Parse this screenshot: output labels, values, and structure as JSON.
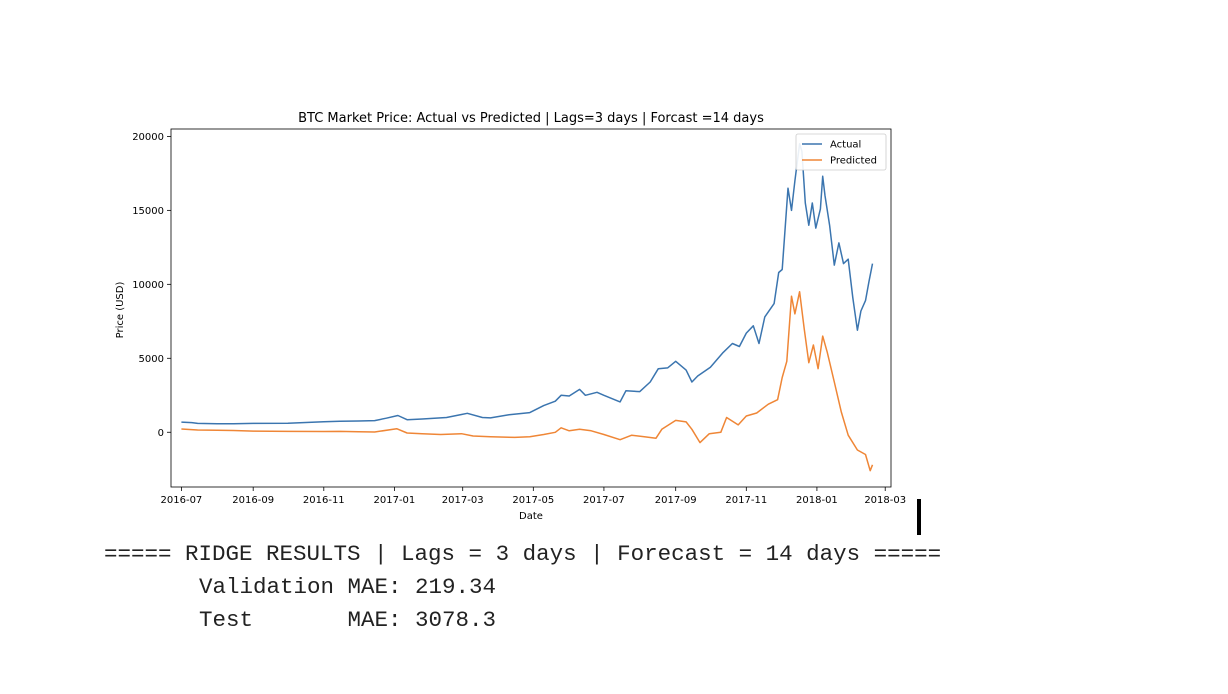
{
  "chart_data": {
    "type": "line",
    "title": "BTC Market Price: Actual vs Predicted | Lags=3 days | Forcast =14 days",
    "xlabel": "Date",
    "ylabel": "Price (USD)",
    "xlim": [
      "2016-06-22",
      "2018-03-06"
    ],
    "ylim": [
      -3700,
      20500
    ],
    "x_ticks": [
      "2016-07",
      "2016-09",
      "2016-11",
      "2017-01",
      "2017-03",
      "2017-05",
      "2017-07",
      "2017-09",
      "2017-11",
      "2018-01",
      "2018-03"
    ],
    "y_ticks": [
      0,
      5000,
      10000,
      15000,
      20000
    ],
    "grid": false,
    "legend_position": "top-right",
    "series": [
      {
        "name": "Actual",
        "color": "#3b75af",
        "points": [
          [
            "2016-07-01",
            690
          ],
          [
            "2016-07-10",
            650
          ],
          [
            "2016-07-15",
            600
          ],
          [
            "2016-08-01",
            580
          ],
          [
            "2016-08-15",
            580
          ],
          [
            "2016-09-01",
            600
          ],
          [
            "2016-10-01",
            615
          ],
          [
            "2016-11-01",
            710
          ],
          [
            "2016-11-15",
            740
          ],
          [
            "2016-12-01",
            760
          ],
          [
            "2016-12-15",
            790
          ],
          [
            "2016-12-25",
            950
          ],
          [
            "2017-01-04",
            1130
          ],
          [
            "2017-01-12",
            850
          ],
          [
            "2017-01-25",
            900
          ],
          [
            "2017-02-15",
            1000
          ],
          [
            "2017-02-28",
            1200
          ],
          [
            "2017-03-05",
            1280
          ],
          [
            "2017-03-18",
            1000
          ],
          [
            "2017-03-25",
            970
          ],
          [
            "2017-04-10",
            1180
          ],
          [
            "2017-04-28",
            1330
          ],
          [
            "2017-05-10",
            1800
          ],
          [
            "2017-05-20",
            2100
          ],
          [
            "2017-05-25",
            2500
          ],
          [
            "2017-06-01",
            2450
          ],
          [
            "2017-06-10",
            2900
          ],
          [
            "2017-06-15",
            2500
          ],
          [
            "2017-06-25",
            2700
          ],
          [
            "2017-07-01",
            2500
          ],
          [
            "2017-07-15",
            2050
          ],
          [
            "2017-07-20",
            2800
          ],
          [
            "2017-08-01",
            2750
          ],
          [
            "2017-08-10",
            3400
          ],
          [
            "2017-08-17",
            4300
          ],
          [
            "2017-08-25",
            4350
          ],
          [
            "2017-09-01",
            4800
          ],
          [
            "2017-09-10",
            4200
          ],
          [
            "2017-09-15",
            3400
          ],
          [
            "2017-09-20",
            3800
          ],
          [
            "2017-10-01",
            4400
          ],
          [
            "2017-10-12",
            5400
          ],
          [
            "2017-10-20",
            6000
          ],
          [
            "2017-10-26",
            5800
          ],
          [
            "2017-11-01",
            6700
          ],
          [
            "2017-11-07",
            7200
          ],
          [
            "2017-11-12",
            6000
          ],
          [
            "2017-11-17",
            7800
          ],
          [
            "2017-11-25",
            8700
          ],
          [
            "2017-11-29",
            10800
          ],
          [
            "2017-12-02",
            11000
          ],
          [
            "2017-12-07",
            16500
          ],
          [
            "2017-12-10",
            15000
          ],
          [
            "2017-12-13",
            17000
          ],
          [
            "2017-12-17",
            19500
          ],
          [
            "2017-12-19",
            19000
          ],
          [
            "2017-12-22",
            15500
          ],
          [
            "2017-12-25",
            14000
          ],
          [
            "2017-12-28",
            15500
          ],
          [
            "2017-12-31",
            13800
          ],
          [
            "2018-01-04",
            15100
          ],
          [
            "2018-01-06",
            17300
          ],
          [
            "2018-01-08",
            16000
          ],
          [
            "2018-01-12",
            14000
          ],
          [
            "2018-01-16",
            11300
          ],
          [
            "2018-01-20",
            12800
          ],
          [
            "2018-01-24",
            11400
          ],
          [
            "2018-01-28",
            11700
          ],
          [
            "2018-02-01",
            9100
          ],
          [
            "2018-02-05",
            6900
          ],
          [
            "2018-02-08",
            8200
          ],
          [
            "2018-02-12",
            8900
          ],
          [
            "2018-02-15",
            10200
          ],
          [
            "2018-02-18",
            11400
          ]
        ]
      },
      {
        "name": "Predicted",
        "color": "#ef8636",
        "points": [
          [
            "2016-07-01",
            220
          ],
          [
            "2016-07-15",
            150
          ],
          [
            "2016-08-01",
            140
          ],
          [
            "2016-08-15",
            120
          ],
          [
            "2016-09-01",
            80
          ],
          [
            "2016-10-01",
            60
          ],
          [
            "2016-11-01",
            50
          ],
          [
            "2016-11-15",
            60
          ],
          [
            "2016-12-01",
            40
          ],
          [
            "2016-12-15",
            20
          ],
          [
            "2017-01-03",
            240
          ],
          [
            "2017-01-12",
            -50
          ],
          [
            "2017-01-25",
            -100
          ],
          [
            "2017-02-10",
            -150
          ],
          [
            "2017-02-28",
            -100
          ],
          [
            "2017-03-10",
            -250
          ],
          [
            "2017-03-25",
            -300
          ],
          [
            "2017-04-15",
            -350
          ],
          [
            "2017-04-28",
            -300
          ],
          [
            "2017-05-10",
            -150
          ],
          [
            "2017-05-20",
            0
          ],
          [
            "2017-05-25",
            300
          ],
          [
            "2017-06-01",
            100
          ],
          [
            "2017-06-10",
            200
          ],
          [
            "2017-06-20",
            100
          ],
          [
            "2017-07-01",
            -150
          ],
          [
            "2017-07-15",
            -500
          ],
          [
            "2017-07-25",
            -200
          ],
          [
            "2017-08-05",
            -300
          ],
          [
            "2017-08-15",
            -400
          ],
          [
            "2017-08-20",
            200
          ],
          [
            "2017-09-01",
            800
          ],
          [
            "2017-09-10",
            700
          ],
          [
            "2017-09-15",
            200
          ],
          [
            "2017-09-22",
            -700
          ],
          [
            "2017-09-30",
            -100
          ],
          [
            "2017-10-10",
            0
          ],
          [
            "2017-10-15",
            1000
          ],
          [
            "2017-10-25",
            500
          ],
          [
            "2017-11-01",
            1100
          ],
          [
            "2017-11-10",
            1300
          ],
          [
            "2017-11-20",
            1900
          ],
          [
            "2017-11-28",
            2200
          ],
          [
            "2017-12-02",
            3700
          ],
          [
            "2017-12-06",
            4800
          ],
          [
            "2017-12-10",
            9200
          ],
          [
            "2017-12-13",
            8000
          ],
          [
            "2017-12-17",
            9500
          ],
          [
            "2017-12-21",
            7000
          ],
          [
            "2017-12-25",
            4700
          ],
          [
            "2017-12-29",
            5900
          ],
          [
            "2018-01-02",
            4300
          ],
          [
            "2018-01-06",
            6500
          ],
          [
            "2018-01-10",
            5400
          ],
          [
            "2018-01-16",
            3400
          ],
          [
            "2018-01-22",
            1400
          ],
          [
            "2018-01-28",
            -200
          ],
          [
            "2018-02-05",
            -1200
          ],
          [
            "2018-02-12",
            -1500
          ],
          [
            "2018-02-16",
            -2600
          ],
          [
            "2018-02-18",
            -2200
          ]
        ]
      }
    ]
  },
  "console": {
    "header": "===== RIDGE RESULTS | Lags = 3 days | Forecast = 14 days =====",
    "validation": "Validation MAE: 219.34",
    "test": "Test       MAE: 3078.3"
  }
}
